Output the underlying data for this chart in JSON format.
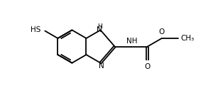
{
  "bg": "#ffffff",
  "lc": "#000000",
  "lw": 1.3,
  "fs": 7.5,
  "figsize": [
    3.07,
    1.31
  ],
  "dpi": 100,
  "s": 1.0,
  "xlim": [
    -2.0,
    6.5
  ],
  "ylim": [
    -2.8,
    2.8
  ]
}
